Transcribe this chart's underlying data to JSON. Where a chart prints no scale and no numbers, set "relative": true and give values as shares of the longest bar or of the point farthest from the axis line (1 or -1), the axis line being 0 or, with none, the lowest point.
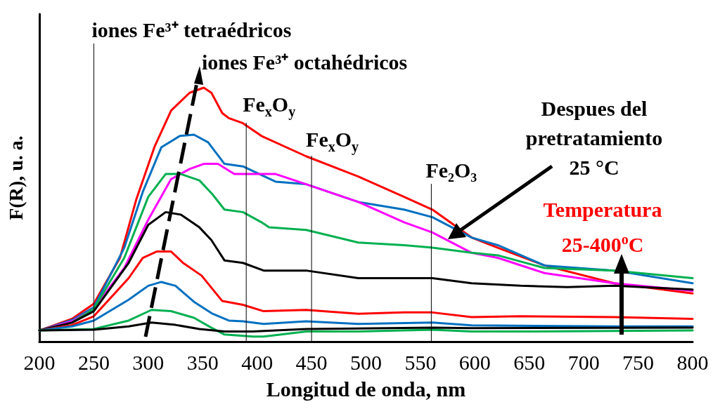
{
  "chart_data": {
    "type": "line",
    "relative": true,
    "xlabel": "Longitud de onda, nm",
    "ylabel": "F(R), u. a.",
    "xlim": [
      200,
      800
    ],
    "xticks": [
      200,
      250,
      300,
      350,
      400,
      450,
      500,
      550,
      600,
      650,
      700,
      750,
      800
    ],
    "grid": false,
    "marker": "none",
    "line_style": "solid",
    "series": [
      {
        "color": "#ff0000",
        "x": [
          200,
          230,
          250,
          274,
          289,
          306,
          321,
          338,
          351,
          358,
          368,
          374,
          387,
          404,
          445,
          493,
          535,
          561,
          597,
          621,
          664,
          728,
          800
        ],
        "values": [
          0.044,
          0.09,
          0.149,
          0.33,
          0.56,
          0.77,
          0.91,
          0.98,
          1,
          0.98,
          0.9,
          0.88,
          0.86,
          0.81,
          0.73,
          0.65,
          0.57,
          0.52,
          0.41,
          0.37,
          0.3,
          0.23,
          0.19
        ]
      },
      {
        "color": "#0070c0",
        "x": [
          200,
          230,
          250,
          278,
          295,
          312,
          329,
          342,
          355,
          370,
          387,
          417,
          445,
          493,
          535,
          561,
          597,
          621,
          664,
          728,
          800
        ],
        "values": [
          0.044,
          0.085,
          0.135,
          0.37,
          0.59,
          0.765,
          0.81,
          0.815,
          0.785,
          0.7,
          0.69,
          0.63,
          0.62,
          0.55,
          0.52,
          0.49,
          0.41,
          0.38,
          0.3,
          0.28,
          0.23
        ]
      },
      {
        "color": "#ff00ff",
        "x": [
          200,
          230,
          250,
          278,
          300,
          321,
          338,
          351,
          364,
          379,
          404,
          417,
          445,
          493,
          535,
          561,
          597,
          621,
          664,
          728,
          800
        ],
        "values": [
          0.044,
          0.08,
          0.13,
          0.29,
          0.48,
          0.64,
          0.68,
          0.7,
          0.7,
          0.66,
          0.66,
          0.66,
          0.62,
          0.55,
          0.47,
          0.43,
          0.35,
          0.33,
          0.27,
          0.23,
          0.2
        ]
      },
      {
        "color": "#00b050",
        "x": [
          200,
          230,
          250,
          278,
          300,
          316,
          330,
          347,
          359,
          370,
          387,
          404,
          411,
          445,
          493,
          535,
          561,
          597,
          621,
          664,
          728,
          800
        ],
        "values": [
          0.044,
          0.075,
          0.13,
          0.33,
          0.57,
          0.66,
          0.66,
          0.635,
          0.58,
          0.52,
          0.51,
          0.47,
          0.45,
          0.44,
          0.39,
          0.38,
          0.37,
          0.35,
          0.34,
          0.29,
          0.28,
          0.25
        ]
      },
      {
        "color": "#000000",
        "x": [
          200,
          230,
          250,
          282,
          300,
          316,
          330,
          347,
          358,
          370,
          387,
          406,
          445,
          493,
          535,
          561,
          597,
          642,
          685,
          728,
          800
        ],
        "values": [
          0.044,
          0.075,
          0.12,
          0.31,
          0.46,
          0.51,
          0.5,
          0.45,
          0.4,
          0.32,
          0.31,
          0.28,
          0.28,
          0.25,
          0.25,
          0.25,
          0.23,
          0.22,
          0.215,
          0.22,
          0.205
        ]
      },
      {
        "color": "#ff0000",
        "x": [
          200,
          230,
          250,
          282,
          295,
          308,
          321,
          332,
          349,
          368,
          387,
          406,
          445,
          493,
          535,
          561,
          597,
          642,
          728,
          800
        ],
        "values": [
          0.044,
          0.065,
          0.1,
          0.25,
          0.33,
          0.355,
          0.355,
          0.31,
          0.26,
          0.16,
          0.145,
          0.12,
          0.125,
          0.11,
          0.115,
          0.115,
          0.097,
          0.1,
          0.097,
          0.09
        ]
      },
      {
        "color": "#0070c0",
        "x": [
          200,
          230,
          250,
          282,
          300,
          312,
          325,
          342,
          359,
          374,
          387,
          406,
          445,
          493,
          561,
          597,
          728,
          800
        ],
        "values": [
          0.044,
          0.06,
          0.083,
          0.165,
          0.22,
          0.235,
          0.22,
          0.157,
          0.11,
          0.083,
          0.08,
          0.07,
          0.08,
          0.07,
          0.075,
          0.064,
          0.06,
          0.06
        ]
      },
      {
        "color": "#00b050",
        "x": [
          200,
          250,
          282,
          303,
          321,
          342,
          358,
          370,
          396,
          406,
          445,
          493,
          561,
          597,
          642,
          800
        ],
        "values": [
          0.044,
          0.05,
          0.083,
          0.125,
          0.12,
          0.094,
          0.055,
          0.028,
          0.02,
          0.02,
          0.04,
          0.04,
          0.047,
          0.04,
          0.04,
          0.044
        ]
      },
      {
        "color": "#000000",
        "x": [
          200,
          250,
          282,
          303,
          325,
          347,
          370,
          396,
          445,
          561,
          597,
          800
        ],
        "values": [
          0.044,
          0.047,
          0.06,
          0.075,
          0.066,
          0.05,
          0.04,
          0.04,
          0.05,
          0.055,
          0.053,
          0.055
        ]
      }
    ],
    "ref_lines": [
      {
        "axis": "x",
        "value": 250,
        "label": "iones Fe³⁺ tetraédricos"
      },
      {
        "axis": "x",
        "value": 390,
        "label": "Fe$_{x}$O$_{y}$"
      },
      {
        "axis": "x",
        "value": 450,
        "label": "Fe$_{x}$O$_{y}$"
      },
      {
        "axis": "x",
        "value": 560,
        "label": "Fe₂O₃"
      }
    ],
    "annotations": [
      "iones Fe³⁺ octahédricos",
      "Despues del\npretratamiento\n25 °C",
      "Temperatura\n25-400$^{o}$C"
    ]
  }
}
